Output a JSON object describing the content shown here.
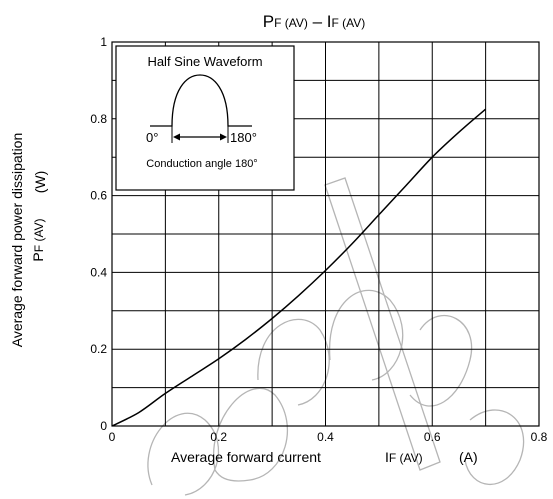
{
  "chart_data": {
    "type": "line",
    "title": {
      "main": "P",
      "main_sub": "F (AV)",
      "dash": " – I",
      "dash_sub": "F (AV)"
    },
    "xlabel": {
      "text": "Average forward current",
      "symbol": "I",
      "symbol_sub": "F (AV)",
      "unit": "(A)"
    },
    "ylabel": {
      "line1": "Average forward power dissipation",
      "symbol": "P",
      "symbol_sub": "F (AV)",
      "unit": "(W)"
    },
    "xlim": [
      0,
      0.8
    ],
    "ylim": [
      0,
      1
    ],
    "x_ticks": [
      0,
      0.2,
      0.4,
      0.6,
      0.8
    ],
    "x_tick_labels": [
      "0",
      "0.2",
      "0.4",
      "0.6",
      "0.8"
    ],
    "y_ticks": [
      0,
      0.2,
      0.4,
      0.6,
      0.8,
      1
    ],
    "y_tick_labels": [
      "0",
      "0.2",
      "0.4",
      "0.6",
      "0.8",
      "1"
    ],
    "x_grid_step": 0.1,
    "y_grid_step": 0.1,
    "grid": true,
    "series": [
      {
        "x": [
          0,
          0.05,
          0.1,
          0.15,
          0.2,
          0.25,
          0.3,
          0.35,
          0.4,
          0.45,
          0.5,
          0.55,
          0.6,
          0.65,
          0.7
        ],
        "y": [
          0,
          0.035,
          0.085,
          0.13,
          0.175,
          0.225,
          0.28,
          0.34,
          0.405,
          0.475,
          0.55,
          0.625,
          0.7,
          0.765,
          0.825
        ]
      }
    ],
    "inset": {
      "title": "Half Sine Waveform",
      "left_label": "0°",
      "right_label": "180°",
      "caption": "Conduction angle 180°"
    },
    "line_color": "#000000",
    "grid_color": "#000000"
  }
}
